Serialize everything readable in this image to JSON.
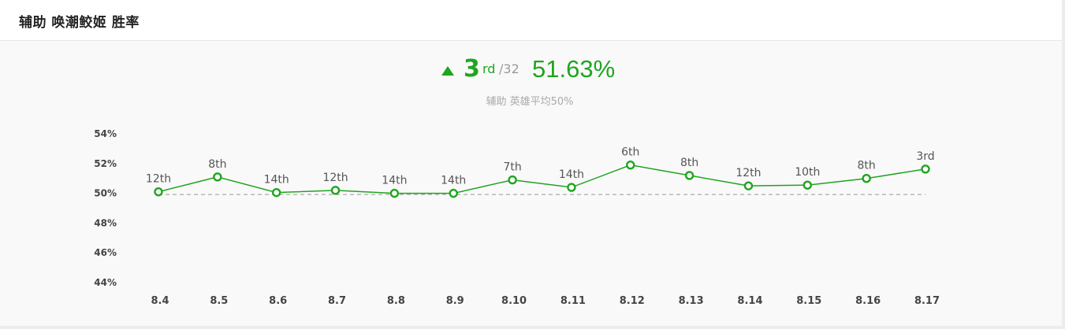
{
  "header": {
    "title": "辅助 唤潮鲛姬 胜率"
  },
  "summary": {
    "trend_icon": "triangle-up-icon",
    "rank": "3",
    "rank_suffix": "rd",
    "rank_total": "/32",
    "winrate": "51.63%",
    "subtitle": "辅助 英雄平均50%"
  },
  "colors": {
    "accent": "#1fa51f",
    "reference_line": "#aaaaaa",
    "muted_text": "#999999"
  },
  "chart_data": {
    "type": "line",
    "title": "",
    "xlabel": "",
    "ylabel": "",
    "ylim": [
      44,
      54
    ],
    "yticks": [
      "54%",
      "52%",
      "50%",
      "48%",
      "46%",
      "44%"
    ],
    "ytick_values": [
      54,
      52,
      50,
      48,
      46,
      44
    ],
    "reference_value": 50,
    "reference_style": "dashed",
    "grid": false,
    "categories": [
      "8.4",
      "8.5",
      "8.6",
      "8.7",
      "8.8",
      "8.9",
      "8.10",
      "8.11",
      "8.12",
      "8.13",
      "8.14",
      "8.15",
      "8.16",
      "8.17"
    ],
    "values": [
      50.1,
      51.1,
      50.05,
      50.2,
      50.0,
      50.0,
      50.9,
      50.4,
      51.9,
      51.2,
      50.5,
      50.55,
      51.0,
      51.63
    ],
    "point_labels": [
      "12th",
      "8th",
      "14th",
      "12th",
      "14th",
      "14th",
      "7th",
      "14th",
      "6th",
      "8th",
      "12th",
      "10th",
      "8th",
      "3rd"
    ]
  }
}
